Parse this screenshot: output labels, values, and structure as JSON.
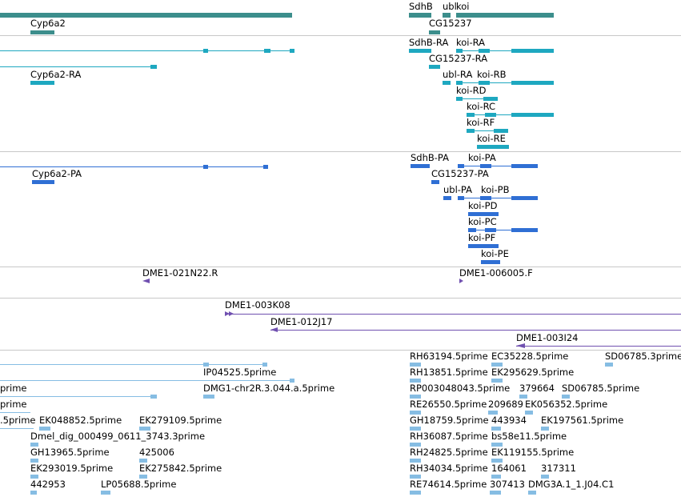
{
  "colors": {
    "gene": "#3c8e8c",
    "transcript": "#1ea8c0",
    "protein": "#2f6fd4",
    "clone": "#7050b0",
    "est": "#86bde3",
    "separator": "#c8c8c8"
  },
  "tracks": {
    "genes": {
      "labels": [
        "Cyp6a2",
        "SdhB",
        "ubl",
        "koi",
        "CG15237"
      ]
    },
    "transcripts": {
      "labels": [
        "Cyp6a2-RA",
        "SdhB-RA",
        "koi-RA",
        "CG15237-RA",
        "ubl-RA",
        "koi-RB",
        "koi-RD",
        "koi-RC",
        "koi-RF",
        "koi-RE"
      ]
    },
    "proteins": {
      "labels": [
        "Cyp6a2-PA",
        "SdhB-PA",
        "koi-PA",
        "CG15237-PA",
        "ubl-PA",
        "koi-PB",
        "koi-PD",
        "koi-PC",
        "koi-PF",
        "koi-PE"
      ]
    },
    "bac_clones": {
      "labels": [
        "DME1-021N22.R",
        "DME1-006005.F"
      ]
    },
    "bac_ends": {
      "labels": [
        "DME1-003K08",
        "DME1-012J17",
        "DME1-003I24"
      ]
    },
    "est_alignments": {
      "labels": [
        "RH63194.5prime",
        "EC35228.5prime",
        "SD06785.3prime",
        "IP04525.5prime",
        "RH13851.5prime",
        "EK295629.5prime",
        "prime",
        "DMG1-chr2R.3.044.a.5prime",
        "RP003048043.5prime",
        "379664",
        "SD06785.5prime",
        "prime",
        "RE26550.5prime",
        "209689",
        "EK056352.5prime",
        ".5prime",
        "EK048852.5prime",
        "EK279109.5prime",
        "GH18759.5prime",
        "443934",
        "EK197561.5prime",
        "Dmel_dig_000499_0611_3743.3prime",
        "RH36087.5prime",
        "bs58e11.5prime",
        "GH13965.5prime",
        "425006",
        "RH24825.5prime",
        "EK119155.5prime",
        "EK293019.5prime",
        "EK275842.5prime",
        "RH34034.5prime",
        "164061",
        "317311",
        "442953",
        "LP05688.5prime",
        "RE74614.5prime",
        "307413",
        "DMG3A.1_1.J04.C1"
      ]
    }
  }
}
